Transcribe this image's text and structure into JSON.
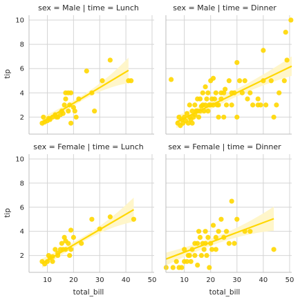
{
  "colors": {
    "accent": "#FFD700",
    "ci_band": "#FFF6C7",
    "grid": "#D4D4D4",
    "spine": "#BDBDBD",
    "text": "#262626",
    "background": "#FFFFFF"
  },
  "chart_data": {
    "type": "scatter",
    "kind": "faceted scatter with linear regression fit and confidence band",
    "shared_axes": {
      "xlabel": "total_bill",
      "ylabel": "tip",
      "xlim": [
        3,
        50.8
      ],
      "ylim": [
        0.6,
        10.4
      ],
      "xticks": [
        10,
        20,
        30,
        40,
        50
      ],
      "yticks": [
        2,
        4,
        6,
        8,
        10
      ]
    },
    "grid": true,
    "panels": [
      {
        "title": "sex = Male | time = Lunch",
        "points": [
          [
            8,
            1.5
          ],
          [
            8.5,
            2
          ],
          [
            9,
            1.6
          ],
          [
            10,
            1.7
          ],
          [
            10.5,
            1.9
          ],
          [
            11,
            1.8
          ],
          [
            12,
            2
          ],
          [
            13,
            2.2
          ],
          [
            13.5,
            2
          ],
          [
            14,
            2
          ],
          [
            15,
            2.2
          ],
          [
            15.5,
            2.5
          ],
          [
            16,
            2.3
          ],
          [
            16.5,
            3
          ],
          [
            17,
            3.5
          ],
          [
            17,
            4
          ],
          [
            18,
            4
          ],
          [
            18,
            2.5
          ],
          [
            18.5,
            3
          ],
          [
            19,
            4
          ],
          [
            19,
            1.5
          ],
          [
            20,
            2.8
          ],
          [
            20.5,
            2.5
          ],
          [
            21,
            2
          ],
          [
            22,
            3.5
          ],
          [
            25,
            5.8
          ],
          [
            27,
            4
          ],
          [
            28,
            2.5
          ],
          [
            31,
            5
          ],
          [
            34,
            6.7
          ],
          [
            41,
            5
          ],
          [
            42,
            5
          ]
        ],
        "fit": {
          "x": [
            8,
            41
          ],
          "y": [
            1.6,
            5.85
          ]
        },
        "ci_half_width": {
          "x": [
            8,
            41
          ],
          "y": [
            0.35,
            1.05
          ]
        }
      },
      {
        "title": "sex = Male | time = Dinner",
        "points": [
          [
            5,
            5.1
          ],
          [
            7.5,
            1.5
          ],
          [
            8,
            2
          ],
          [
            8.5,
            1.3
          ],
          [
            9,
            1.8
          ],
          [
            9.5,
            1.5
          ],
          [
            10,
            2
          ],
          [
            10.5,
            1.7
          ],
          [
            11,
            2.3
          ],
          [
            11.5,
            1.5
          ],
          [
            12,
            2
          ],
          [
            12,
            3
          ],
          [
            12.5,
            1.8
          ],
          [
            13,
            2.5
          ],
          [
            13,
            1.5
          ],
          [
            13.5,
            2
          ],
          [
            14,
            2.2
          ],
          [
            14,
            3
          ],
          [
            14.5,
            2.5
          ],
          [
            15,
            2.5
          ],
          [
            15,
            3.5
          ],
          [
            15.5,
            2
          ],
          [
            16,
            2.5
          ],
          [
            16,
            3.5
          ],
          [
            16.5,
            2.9
          ],
          [
            17,
            4
          ],
          [
            17,
            3
          ],
          [
            17.5,
            2.5
          ],
          [
            18,
            3
          ],
          [
            18,
            4.5
          ],
          [
            18.5,
            3.5
          ],
          [
            19,
            2.5
          ],
          [
            19,
            4
          ],
          [
            19.5,
            3
          ],
          [
            20,
            3
          ],
          [
            20,
            5
          ],
          [
            20.5,
            3.5
          ],
          [
            21,
            3
          ],
          [
            21,
            5.2
          ],
          [
            21.5,
            3.5
          ],
          [
            22,
            4
          ],
          [
            22.5,
            3
          ],
          [
            23,
            3
          ],
          [
            23,
            2
          ],
          [
            24,
            4
          ],
          [
            24,
            3.5
          ],
          [
            25,
            4
          ],
          [
            25,
            2
          ],
          [
            25.5,
            4.3
          ],
          [
            26,
            3
          ],
          [
            27,
            5
          ],
          [
            28,
            4
          ],
          [
            28,
            3
          ],
          [
            29,
            4
          ],
          [
            30,
            2
          ],
          [
            30,
            6.5
          ],
          [
            31,
            5
          ],
          [
            32,
            4
          ],
          [
            33,
            5
          ],
          [
            34,
            3.5
          ],
          [
            35,
            4
          ],
          [
            36,
            3
          ],
          [
            38,
            3
          ],
          [
            38,
            3.5
          ],
          [
            39,
            3
          ],
          [
            40,
            7.5
          ],
          [
            40,
            5
          ],
          [
            41,
            3
          ],
          [
            43,
            5
          ],
          [
            44,
            2
          ],
          [
            45,
            3
          ],
          [
            46,
            4
          ],
          [
            48,
            5
          ],
          [
            48.5,
            9
          ],
          [
            49,
            6.7
          ],
          [
            50.5,
            10
          ]
        ],
        "fit": {
          "x": [
            7,
            50.8
          ],
          "y": [
            1.6,
            6.2
          ]
        },
        "ci_half_width": {
          "x": [
            7,
            50.8
          ],
          "y": [
            0.5,
            0.8
          ]
        }
      },
      {
        "title": "sex = Female | time = Lunch",
        "points": [
          [
            8,
            1.5
          ],
          [
            9,
            1.3
          ],
          [
            10,
            1.5
          ],
          [
            10.5,
            2
          ],
          [
            11,
            1.8
          ],
          [
            12,
            1.9
          ],
          [
            12,
            1.5
          ],
          [
            13,
            2.5
          ],
          [
            14,
            2
          ],
          [
            14,
            2.2
          ],
          [
            15,
            2.5
          ],
          [
            15.5,
            3
          ],
          [
            16,
            2.5
          ],
          [
            16.5,
            3.5
          ],
          [
            17,
            3.2
          ],
          [
            17,
            2.5
          ],
          [
            18,
            3
          ],
          [
            18.5,
            2
          ],
          [
            19,
            2.5
          ],
          [
            19,
            4.1
          ],
          [
            20,
            3.5
          ],
          [
            23,
            3
          ],
          [
            27,
            5
          ],
          [
            30,
            4.2
          ],
          [
            34,
            5.2
          ],
          [
            43,
            5
          ]
        ],
        "fit": {
          "x": [
            8,
            43
          ],
          "y": [
            1.35,
            5.8
          ]
        },
        "ci_half_width": {
          "x": [
            8,
            43
          ],
          "y": [
            0.35,
            1.0
          ]
        }
      },
      {
        "title": "sex = Female | time = Dinner",
        "points": [
          [
            3.1,
            1
          ],
          [
            5.7,
            1
          ],
          [
            7,
            1.5
          ],
          [
            8,
            1
          ],
          [
            9,
            1
          ],
          [
            10,
            1.5
          ],
          [
            10,
            2.5
          ],
          [
            11,
            1.5
          ],
          [
            11.5,
            2
          ],
          [
            12,
            2
          ],
          [
            12.5,
            1.5
          ],
          [
            13,
            2.5
          ],
          [
            14,
            3
          ],
          [
            14,
            2
          ],
          [
            15,
            3
          ],
          [
            15,
            1.2
          ],
          [
            15.5,
            4
          ],
          [
            16,
            3.5
          ],
          [
            16.5,
            2
          ],
          [
            17,
            3
          ],
          [
            17.5,
            2.5
          ],
          [
            18,
            3
          ],
          [
            18,
            4
          ],
          [
            18.5,
            2
          ],
          [
            19,
            3.5
          ],
          [
            19.5,
            1
          ],
          [
            20,
            3
          ],
          [
            20.5,
            2.5
          ],
          [
            21,
            4.5
          ],
          [
            22,
            3.5
          ],
          [
            22,
            2.5
          ],
          [
            23,
            4
          ],
          [
            24,
            5
          ],
          [
            25,
            3.5
          ],
          [
            26,
            4
          ],
          [
            27,
            3
          ],
          [
            28,
            6.5
          ],
          [
            29,
            3
          ],
          [
            30,
            5
          ],
          [
            33,
            4
          ],
          [
            35,
            4
          ],
          [
            44,
            2.5
          ]
        ],
        "fit": {
          "x": [
            3,
            44
          ],
          "y": [
            1.7,
            5.05
          ]
        },
        "ci_half_width": {
          "x": [
            3,
            44
          ],
          "y": [
            0.5,
            1.0
          ]
        }
      }
    ]
  }
}
